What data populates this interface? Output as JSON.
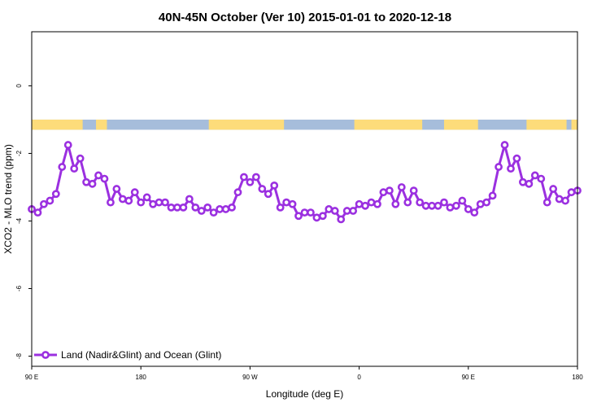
{
  "chart_data": {
    "type": "line",
    "title": "40N-45N October (Ver 10)   2015-01-01 to 2020-12-18",
    "xlabel": "Longitude (deg E)",
    "ylabel": "XCO2 - MLO trend (ppm)",
    "xlim": [
      90,
      540
    ],
    "ylim": [
      -8.3,
      1.6
    ],
    "grid": false,
    "legend_position": "bottom-left",
    "x_ticks": [
      {
        "value": 90,
        "label": "90 E"
      },
      {
        "value": 180,
        "label": "180"
      },
      {
        "value": 270,
        "label": "90 W"
      },
      {
        "value": 360,
        "label": "0"
      },
      {
        "value": 450,
        "label": "90 E"
      },
      {
        "value": 540,
        "label": "180"
      }
    ],
    "y_ticks": [
      {
        "value": 0,
        "label": "0"
      },
      {
        "value": -2,
        "label": "-2"
      },
      {
        "value": -4,
        "label": "-4"
      },
      {
        "value": -6,
        "label": "-6"
      },
      {
        "value": -8,
        "label": "-8"
      }
    ],
    "land_ocean_band": {
      "y_range": [
        -1.3,
        -1.0
      ],
      "ocean_color": "#a6bddb",
      "land_color": "#fddc7a",
      "land_segments": [
        [
          90,
          132
        ],
        [
          143,
          152
        ],
        [
          236,
          298
        ],
        [
          356,
          412
        ],
        [
          430,
          458
        ],
        [
          498,
          531
        ],
        [
          535,
          540
        ]
      ]
    },
    "series": [
      {
        "name": "Land (Nadir&Glint) and Ocean (Glint)",
        "color": "#9b30e0",
        "x": [
          90,
          95,
          100,
          105,
          110,
          115,
          120,
          125,
          130,
          135,
          140,
          145,
          150,
          155,
          160,
          165,
          170,
          175,
          180,
          185,
          190,
          195,
          200,
          205,
          210,
          215,
          220,
          225,
          230,
          235,
          240,
          245,
          250,
          255,
          260,
          265,
          270,
          275,
          280,
          285,
          290,
          295,
          300,
          305,
          310,
          315,
          320,
          325,
          330,
          335,
          340,
          345,
          350,
          355,
          360,
          365,
          370,
          375,
          380,
          385,
          390,
          395,
          400,
          405,
          410,
          415,
          420,
          425,
          430,
          435,
          440,
          445,
          450,
          455,
          460,
          465,
          470,
          475,
          480,
          485,
          490,
          495,
          500,
          505,
          510,
          515,
          520,
          525,
          530,
          535,
          540
        ],
        "y": [
          -3.65,
          -3.75,
          -3.5,
          -3.4,
          -3.2,
          -2.4,
          -1.75,
          -2.45,
          -2.15,
          -2.85,
          -2.9,
          -2.65,
          -2.75,
          -3.45,
          -3.05,
          -3.35,
          -3.4,
          -3.15,
          -3.45,
          -3.3,
          -3.5,
          -3.45,
          -3.45,
          -3.6,
          -3.6,
          -3.6,
          -3.35,
          -3.6,
          -3.7,
          -3.6,
          -3.75,
          -3.65,
          -3.65,
          -3.6,
          -3.15,
          -2.7,
          -2.85,
          -2.7,
          -3.05,
          -3.2,
          -2.95,
          -3.6,
          -3.45,
          -3.5,
          -3.85,
          -3.75,
          -3.75,
          -3.9,
          -3.85,
          -3.65,
          -3.7,
          -3.95,
          -3.7,
          -3.7,
          -3.5,
          -3.55,
          -3.45,
          -3.5,
          -3.15,
          -3.1,
          -3.5,
          -3.0,
          -3.45,
          -3.1,
          -3.45,
          -3.55,
          -3.55,
          -3.55,
          -3.45,
          -3.6,
          -3.55,
          -3.4,
          -3.65,
          -3.75,
          -3.5,
          -3.45,
          -3.25,
          -2.4,
          -1.75,
          -2.45,
          -2.15,
          -2.85,
          -2.9,
          -2.65,
          -2.75,
          -3.45,
          -3.05,
          -3.35,
          -3.4,
          -3.15,
          -3.1
        ]
      }
    ]
  }
}
